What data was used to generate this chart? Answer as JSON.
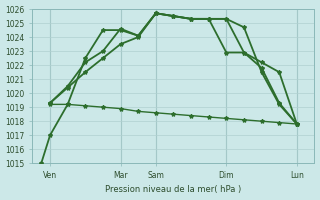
{
  "background_color": "#cce8e8",
  "plot_bg_color": "#cce8e8",
  "grid_color": "#b0d0d0",
  "line_color": "#2d6e2d",
  "xlabel": "Pression niveau de la mer( hPa )",
  "ylim": [
    1015,
    1026
  ],
  "xlim": [
    0,
    16
  ],
  "yticks": [
    1015,
    1016,
    1017,
    1018,
    1019,
    1020,
    1021,
    1022,
    1023,
    1024,
    1025,
    1026
  ],
  "xtick_labels": [
    "Ven",
    "Mar",
    "Sam",
    "Dim",
    "Lun"
  ],
  "xtick_positions": [
    1,
    5,
    7,
    11,
    15
  ],
  "vlines": [
    1,
    5,
    7,
    11,
    15
  ],
  "series": [
    {
      "x": [
        0.5,
        1,
        2,
        3,
        4,
        5,
        6,
        7,
        8,
        9,
        10,
        11,
        12,
        13,
        14,
        15
      ],
      "y": [
        1015,
        1017,
        1019.2,
        1022.5,
        1024.5,
        1024.5,
        1024.1,
        1025.7,
        1025.5,
        1025.3,
        1025.3,
        1025.3,
        1024.7,
        1021.5,
        1019.2,
        1017.8
      ],
      "lw": 1.3
    },
    {
      "x": [
        1,
        2,
        3,
        4,
        5,
        6,
        7,
        8,
        9,
        10,
        11,
        12,
        13,
        14,
        15
      ],
      "y": [
        1019.3,
        1020.4,
        1021.5,
        1022.5,
        1023.5,
        1024.0,
        1025.7,
        1025.5,
        1025.3,
        1025.3,
        1025.3,
        1022.9,
        1022.2,
        1021.5,
        1017.8
      ],
      "lw": 1.3
    },
    {
      "x": [
        1,
        2,
        3,
        4,
        5,
        6,
        7,
        8,
        9,
        10,
        11,
        12,
        13,
        14,
        15
      ],
      "y": [
        1019.2,
        1019.2,
        1019.1,
        1019.0,
        1018.9,
        1018.7,
        1018.6,
        1018.5,
        1018.4,
        1018.3,
        1018.2,
        1018.1,
        1018.0,
        1017.9,
        1017.8
      ],
      "lw": 1.0
    },
    {
      "x": [
        1,
        2,
        3,
        4,
        5,
        6,
        7,
        8,
        9,
        10,
        11,
        12,
        13,
        14,
        15
      ],
      "y": [
        1019.3,
        1020.5,
        1022.2,
        1023.0,
        1024.6,
        1024.1,
        1025.7,
        1025.5,
        1025.3,
        1025.3,
        1022.9,
        1022.9,
        1021.8,
        1019.3,
        1017.8
      ],
      "lw": 1.3
    }
  ]
}
